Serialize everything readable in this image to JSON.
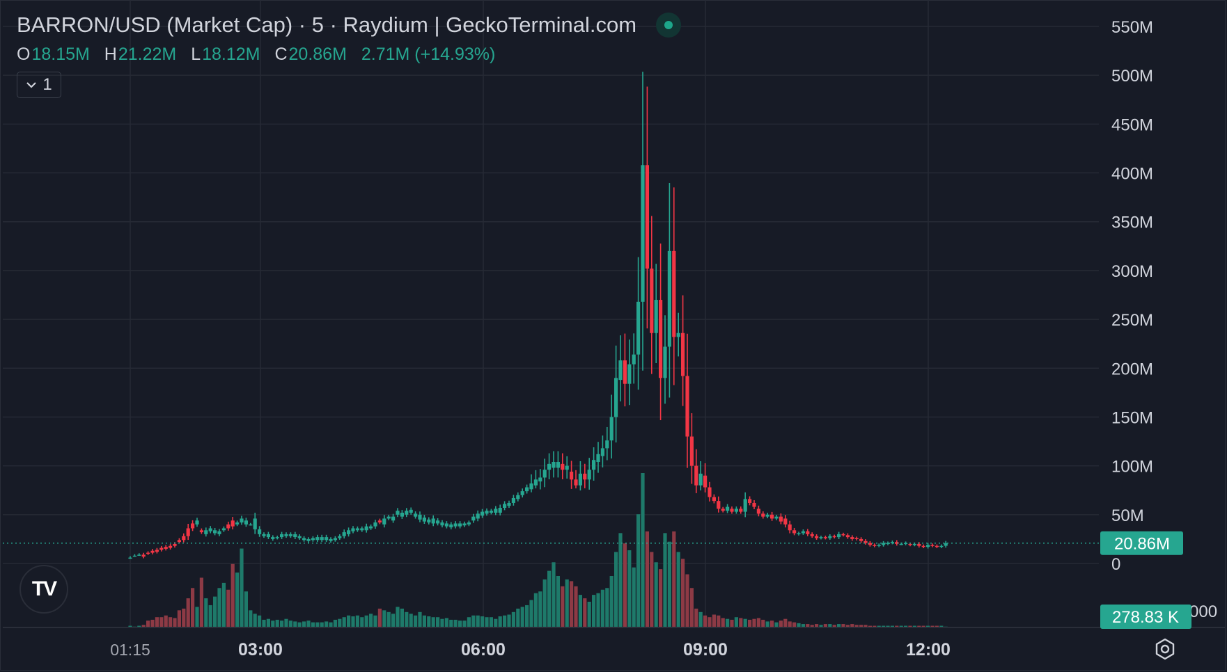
{
  "header": {
    "title": "BARRON/USD (Market Cap) · 5 · Raydium | GeckoTerminal.com",
    "ohlc": [
      {
        "key": "O",
        "value": "18.15M"
      },
      {
        "key": "H",
        "value": "21.22M"
      },
      {
        "key": "L",
        "value": "18.12M"
      },
      {
        "key": "C",
        "value": "20.86M"
      }
    ],
    "change": "2.71M (+14.93%)",
    "collapse_label": "1"
  },
  "logo": {
    "text": "TV",
    "icon": "tradingview-logo-icon"
  },
  "settings": {
    "icon": "settings-icon"
  },
  "colors": {
    "background": "#171b26",
    "grid": "#262a35",
    "up": "#26a690",
    "down": "#f23645",
    "volume_up": "#1e7a6a",
    "volume_down": "#8d3a45",
    "text": "#d1d4dc"
  },
  "chart_data": {
    "type": "candlestick",
    "price_axis_labels": [
      "550M",
      "500M",
      "450M",
      "400M",
      "350M",
      "300M",
      "250M",
      "200M",
      "150M",
      "100M",
      "50M",
      "0"
    ],
    "time_axis_labels": [
      "01:15",
      "03:00",
      "06:00",
      "09:00",
      "12:00"
    ],
    "ylim": [
      0,
      550
    ],
    "y_unit": "M",
    "last_price_label": "20.86M",
    "last_price": 20.86,
    "volume_label": "278.83 K",
    "grid": true,
    "candles": [
      [
        0,
        6,
        6,
        2
      ],
      [
        1,
        8,
        8,
        1
      ],
      [
        2,
        9,
        9,
        2
      ],
      [
        3,
        9,
        7,
        3
      ],
      [
        4,
        11,
        10,
        8
      ],
      [
        5,
        13,
        11,
        9
      ],
      [
        6,
        14,
        12,
        12
      ],
      [
        7,
        16,
        14,
        12
      ],
      [
        8,
        17,
        15,
        14
      ],
      [
        9,
        18,
        16,
        12
      ],
      [
        10,
        20,
        18,
        11
      ],
      [
        11,
        24,
        22,
        20
      ],
      [
        12,
        28,
        24,
        22
      ],
      [
        13,
        36,
        28,
        34
      ],
      [
        14,
        41,
        36,
        46
      ],
      [
        15,
        40,
        44,
        24
      ],
      [
        16,
        34,
        32,
        58
      ],
      [
        17,
        30,
        34,
        34
      ],
      [
        18,
        33,
        36,
        26
      ],
      [
        19,
        31,
        34,
        36
      ],
      [
        20,
        30,
        33,
        46
      ],
      [
        21,
        34,
        36,
        52
      ],
      [
        22,
        40,
        36,
        44
      ],
      [
        23,
        44,
        38,
        74
      ],
      [
        24,
        40,
        42,
        64
      ],
      [
        25,
        42,
        46,
        92
      ],
      [
        26,
        40,
        44,
        42
      ],
      [
        27,
        40,
        40,
        20
      ],
      [
        28,
        35,
        46,
        16
      ],
      [
        29,
        30,
        35,
        14
      ],
      [
        30,
        28,
        30,
        9
      ],
      [
        31,
        27,
        30,
        10
      ],
      [
        32,
        25,
        27,
        8
      ],
      [
        33,
        26,
        27,
        9
      ],
      [
        34,
        27,
        30,
        8
      ],
      [
        35,
        28,
        30,
        10
      ],
      [
        36,
        28,
        30,
        8
      ],
      [
        37,
        27,
        30,
        7
      ],
      [
        38,
        26,
        28,
        6
      ],
      [
        39,
        24,
        26,
        7
      ],
      [
        40,
        23,
        25,
        8
      ],
      [
        41,
        24,
        26,
        6
      ],
      [
        42,
        24,
        27,
        6
      ],
      [
        43,
        24,
        27,
        6
      ],
      [
        44,
        24,
        27,
        7
      ],
      [
        45,
        23,
        25,
        6
      ],
      [
        46,
        24,
        26,
        9
      ],
      [
        47,
        26,
        28,
        10
      ],
      [
        48,
        28,
        32,
        12
      ],
      [
        49,
        30,
        34,
        14
      ],
      [
        50,
        33,
        36,
        13
      ],
      [
        51,
        34,
        36,
        14
      ],
      [
        52,
        34,
        36,
        12
      ],
      [
        53,
        34,
        38,
        14
      ],
      [
        54,
        36,
        38,
        16
      ],
      [
        55,
        38,
        42,
        14
      ],
      [
        56,
        44,
        42,
        22
      ],
      [
        57,
        40,
        46,
        20
      ],
      [
        58,
        46,
        48,
        18
      ],
      [
        59,
        44,
        48,
        16
      ],
      [
        60,
        50,
        54,
        24
      ],
      [
        61,
        48,
        52,
        22
      ],
      [
        62,
        50,
        54,
        18
      ],
      [
        63,
        52,
        55,
        16
      ],
      [
        64,
        48,
        51,
        14
      ],
      [
        65,
        45,
        50,
        18
      ],
      [
        66,
        43,
        47,
        14
      ],
      [
        67,
        42,
        45,
        13
      ],
      [
        68,
        41,
        46,
        12
      ],
      [
        69,
        41,
        44,
        12
      ],
      [
        70,
        39,
        42,
        10
      ],
      [
        71,
        38,
        41,
        11
      ],
      [
        72,
        37,
        40,
        9
      ],
      [
        73,
        38,
        41,
        9
      ],
      [
        74,
        38,
        41,
        8
      ],
      [
        75,
        39,
        41,
        8
      ],
      [
        76,
        40,
        42,
        12
      ],
      [
        77,
        44,
        48,
        14
      ],
      [
        78,
        46,
        51,
        14
      ],
      [
        79,
        49,
        53,
        13
      ],
      [
        80,
        51,
        54,
        12
      ],
      [
        81,
        52,
        54,
        12
      ],
      [
        82,
        52,
        56,
        10
      ],
      [
        83,
        52,
        57,
        13
      ],
      [
        84,
        57,
        61,
        14
      ],
      [
        85,
        59,
        62,
        15
      ],
      [
        86,
        62,
        67,
        18
      ],
      [
        87,
        66,
        70,
        22
      ],
      [
        88,
        70,
        74,
        24
      ],
      [
        89,
        74,
        78,
        26
      ],
      [
        90,
        76,
        82,
        32
      ],
      [
        91,
        80,
        86,
        40
      ],
      [
        92,
        84,
        88,
        42
      ],
      [
        93,
        88,
        96,
        56
      ],
      [
        94,
        96,
        102,
        66
      ],
      [
        95,
        98,
        104,
        76
      ],
      [
        96,
        98,
        104,
        60
      ],
      [
        97,
        102,
        96,
        48
      ],
      [
        98,
        96,
        100,
        56
      ],
      [
        99,
        94,
        86,
        54
      ],
      [
        100,
        86,
        80,
        48
      ],
      [
        101,
        80,
        92,
        38
      ],
      [
        102,
        92,
        86,
        34
      ],
      [
        103,
        86,
        96,
        30
      ],
      [
        104,
        96,
        106,
        38
      ],
      [
        105,
        104,
        112,
        40
      ],
      [
        106,
        110,
        118,
        44
      ],
      [
        107,
        118,
        126,
        46
      ],
      [
        108,
        126,
        150,
        60
      ],
      [
        109,
        150,
        190,
        88
      ],
      [
        110,
        188,
        208,
        110
      ],
      [
        111,
        208,
        184,
        98
      ],
      [
        112,
        184,
        204,
        90
      ],
      [
        113,
        204,
        214,
        70
      ],
      [
        114,
        214,
        268,
        132
      ],
      [
        115,
        268,
        408,
        180
      ],
      [
        116,
        408,
        302,
        112
      ],
      [
        117,
        302,
        236,
        88
      ],
      [
        118,
        236,
        270,
        76
      ],
      [
        119,
        270,
        190,
        68
      ],
      [
        120,
        190,
        222,
        110
      ],
      [
        121,
        222,
        320,
        100
      ],
      [
        122,
        320,
        232,
        112
      ],
      [
        123,
        232,
        236,
        88
      ],
      [
        124,
        236,
        192,
        80
      ],
      [
        125,
        192,
        130,
        62
      ],
      [
        126,
        130,
        100,
        46
      ],
      [
        127,
        100,
        80,
        22
      ],
      [
        128,
        80,
        92,
        18
      ],
      [
        129,
        90,
        78,
        14
      ],
      [
        130,
        78,
        68,
        12
      ],
      [
        131,
        68,
        64,
        15
      ],
      [
        132,
        64,
        56,
        14
      ],
      [
        133,
        56,
        54,
        11
      ],
      [
        134,
        54,
        58,
        10
      ],
      [
        135,
        56,
        53,
        9
      ],
      [
        136,
        53,
        56,
        12
      ],
      [
        137,
        56,
        53,
        11
      ],
      [
        138,
        53,
        66,
        10
      ],
      [
        139,
        66,
        62,
        9
      ],
      [
        140,
        62,
        58,
        10
      ],
      [
        141,
        56,
        51,
        11
      ],
      [
        142,
        51,
        48,
        9
      ],
      [
        143,
        48,
        50,
        7
      ],
      [
        144,
        50,
        46,
        8
      ],
      [
        145,
        46,
        48,
        6
      ],
      [
        146,
        48,
        43,
        8
      ],
      [
        147,
        46,
        40,
        10
      ],
      [
        148,
        40,
        34,
        7
      ],
      [
        149,
        34,
        31,
        6
      ],
      [
        150,
        30,
        31,
        5
      ],
      [
        151,
        31,
        33,
        4
      ],
      [
        152,
        33,
        30,
        4
      ],
      [
        153,
        30,
        28,
        3
      ],
      [
        154,
        28,
        26,
        4
      ],
      [
        155,
        26,
        27,
        3
      ],
      [
        156,
        27,
        26,
        4
      ],
      [
        157,
        26,
        28,
        4
      ],
      [
        158,
        28,
        27,
        3
      ],
      [
        159,
        27,
        30,
        4
      ],
      [
        160,
        30,
        29,
        4
      ],
      [
        161,
        29,
        27,
        3
      ],
      [
        162,
        27,
        25,
        4
      ],
      [
        163,
        26,
        25,
        3
      ],
      [
        164,
        25,
        23,
        3
      ],
      [
        165,
        23,
        21,
        3
      ],
      [
        166,
        21,
        19,
        2
      ],
      [
        167,
        19,
        18,
        2
      ],
      [
        168,
        18,
        19,
        2
      ],
      [
        169,
        19,
        21,
        2
      ],
      [
        170,
        20,
        21,
        2
      ],
      [
        171,
        21,
        22,
        2
      ],
      [
        172,
        22,
        20,
        2
      ],
      [
        173,
        20,
        20,
        2
      ],
      [
        174,
        20,
        21,
        2
      ],
      [
        175,
        20,
        19,
        2
      ],
      [
        176,
        19,
        20,
        2
      ],
      [
        177,
        20,
        18,
        2
      ],
      [
        178,
        18,
        17,
        2
      ],
      [
        179,
        17,
        19,
        2
      ],
      [
        180,
        19,
        18,
        2
      ],
      [
        181,
        18,
        17,
        2
      ],
      [
        182,
        17,
        18,
        2
      ],
      [
        183,
        18.15,
        20.86,
        1
      ]
    ],
    "candle_format": [
      "index",
      "open",
      "close",
      "volume"
    ]
  }
}
